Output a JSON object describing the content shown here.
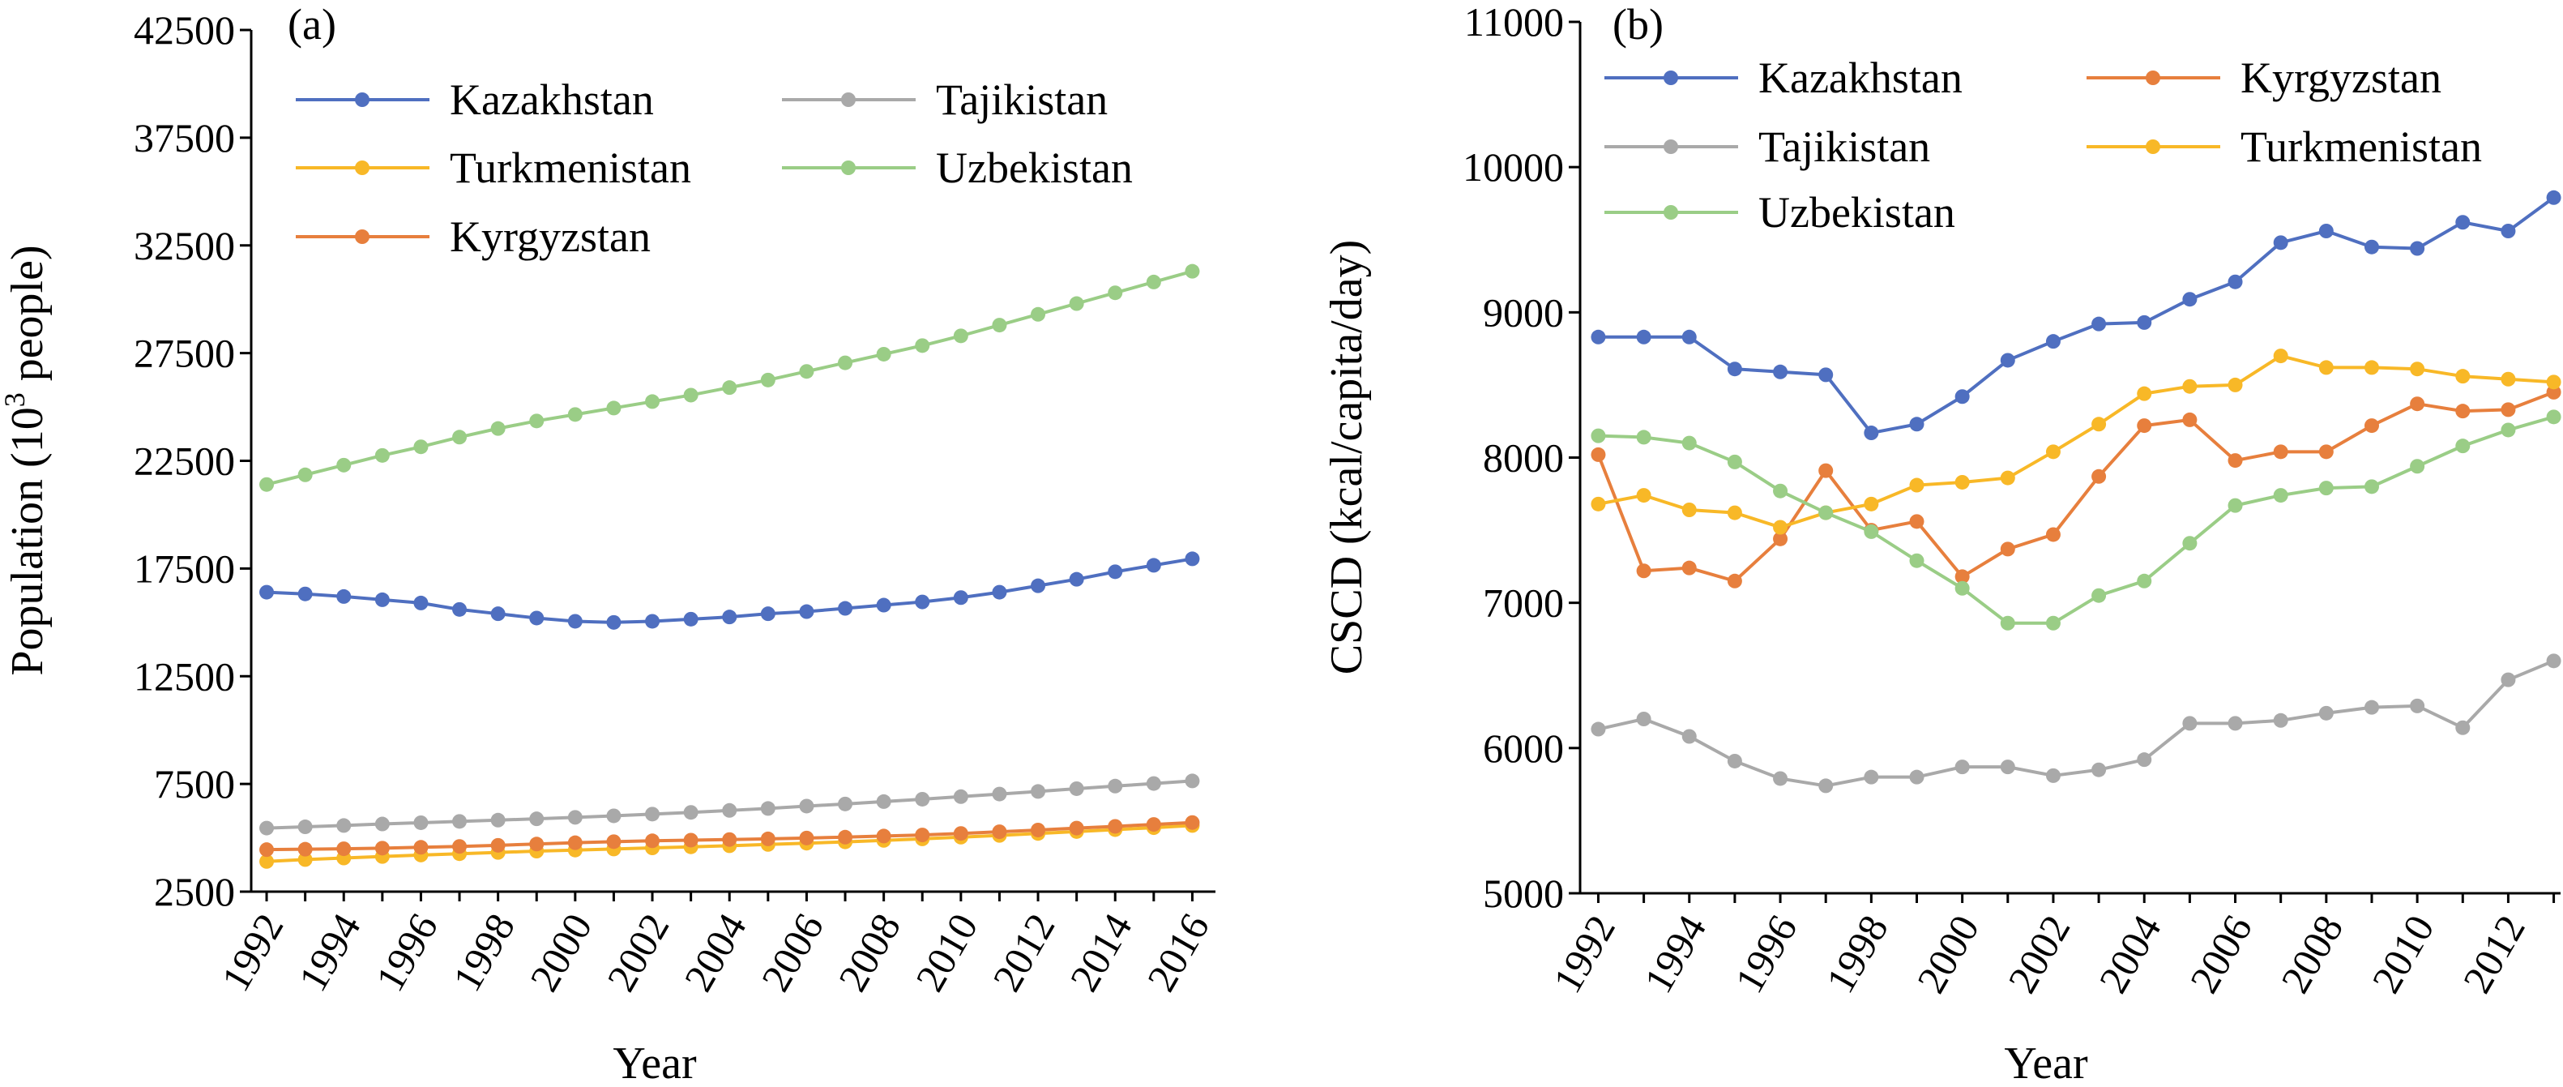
{
  "chart_data": [
    {
      "type": "line",
      "panel_label": "(a)",
      "xlabel": "Year",
      "ylabel": "Population (10",
      "ylabel_sup": "3",
      "ylabel_end": " people)",
      "x": [
        1992,
        1993,
        1994,
        1995,
        1996,
        1997,
        1998,
        1999,
        2000,
        2001,
        2002,
        2003,
        2004,
        2005,
        2006,
        2007,
        2008,
        2009,
        2010,
        2011,
        2012,
        2013,
        2014,
        2015,
        2016
      ],
      "x_tick_labels": [
        "1992",
        "1994",
        "1996",
        "1998",
        "2000",
        "2002",
        "2004",
        "2006",
        "2008",
        "2010",
        "2012",
        "2014",
        "2016"
      ],
      "xlim": [
        1991.6,
        2016.6
      ],
      "ylim": [
        2500,
        42500
      ],
      "y_tick_labels": [
        "2500",
        "7500",
        "12500",
        "17500",
        "22500",
        "27500",
        "32500",
        "37500",
        "42500"
      ],
      "legend_placement": "top-left",
      "series": [
        {
          "name": "Kazakhstan",
          "color": "#4f6fc0",
          "values": [
            16400,
            16320,
            16200,
            16050,
            15900,
            15600,
            15400,
            15200,
            15050,
            15000,
            15050,
            15150,
            15250,
            15400,
            15500,
            15650,
            15800,
            15950,
            16150,
            16400,
            16700,
            17000,
            17350,
            17650,
            17950
          ]
        },
        {
          "name": "Tajikistan",
          "color": "#a9a9a9",
          "values": [
            5450,
            5510,
            5570,
            5640,
            5700,
            5760,
            5820,
            5880,
            5950,
            6020,
            6100,
            6180,
            6270,
            6360,
            6470,
            6570,
            6680,
            6790,
            6910,
            7030,
            7150,
            7280,
            7400,
            7520,
            7640
          ]
        },
        {
          "name": "Turkmenistan",
          "color": "#f8b827",
          "values": [
            3900,
            3990,
            4060,
            4130,
            4200,
            4260,
            4320,
            4380,
            4430,
            4480,
            4530,
            4580,
            4630,
            4690,
            4750,
            4810,
            4880,
            4950,
            5030,
            5110,
            5200,
            5290,
            5380,
            5470,
            5570
          ]
        },
        {
          "name": "Uzbekistan",
          "color": "#9acd86",
          "values": [
            21400,
            21850,
            22300,
            22750,
            23150,
            23600,
            24000,
            24350,
            24650,
            24950,
            25250,
            25550,
            25900,
            26250,
            26650,
            27050,
            27450,
            27850,
            28300,
            28800,
            29300,
            29800,
            30300,
            30800,
            31300
          ]
        },
        {
          "name": "Kyrgyzstan",
          "color": "#e77f3d",
          "values": [
            4450,
            4470,
            4490,
            4520,
            4560,
            4600,
            4650,
            4710,
            4770,
            4820,
            4860,
            4890,
            4920,
            4950,
            4990,
            5030,
            5080,
            5130,
            5200,
            5280,
            5360,
            5450,
            5530,
            5620,
            5710
          ]
        }
      ]
    },
    {
      "type": "line",
      "panel_label": "(b)",
      "xlabel": "Year",
      "ylabel": "CSCD (kcal/capita/day)",
      "x": [
        1992,
        1993,
        1994,
        1995,
        1996,
        1997,
        1998,
        1999,
        2000,
        2001,
        2002,
        2003,
        2004,
        2005,
        2006,
        2007,
        2008,
        2009,
        2010,
        2011,
        2012,
        2013
      ],
      "x_tick_labels": [
        "1992",
        "1994",
        "1996",
        "1998",
        "2000",
        "2002",
        "2004",
        "2006",
        "2008",
        "2010",
        "2012"
      ],
      "xlim": [
        1991.6,
        2013.15
      ],
      "ylim": [
        5000,
        11000
      ],
      "y_tick_labels": [
        "5000",
        "6000",
        "7000",
        "8000",
        "9000",
        "10000",
        "11000"
      ],
      "legend_placement": "top",
      "series": [
        {
          "name": "Kazakhstan",
          "color": "#4f6fc0",
          "values": [
            8830,
            8830,
            8830,
            8610,
            8590,
            8570,
            8170,
            8230,
            8420,
            8670,
            8800,
            8920,
            8930,
            9090,
            9210,
            9480,
            9560,
            9450,
            9440,
            9620,
            9560,
            9790
          ]
        },
        {
          "name": "Kyrgyzstan",
          "color": "#e77f3d",
          "values": [
            8020,
            7220,
            7240,
            7150,
            7440,
            7910,
            7500,
            7560,
            7180,
            7370,
            7470,
            7870,
            8220,
            8260,
            7980,
            8040,
            8040,
            8220,
            8370,
            8320,
            8330,
            8450
          ]
        },
        {
          "name": "Tajikistan",
          "color": "#a9a9a9",
          "values": [
            6130,
            6200,
            6080,
            5910,
            5790,
            5740,
            5800,
            5800,
            5870,
            5870,
            5810,
            5850,
            5920,
            6170,
            6170,
            6190,
            6240,
            6280,
            6290,
            6140,
            6470,
            6600
          ]
        },
        {
          "name": "Turkmenistan",
          "color": "#f8b827",
          "values": [
            7680,
            7740,
            7640,
            7620,
            7520,
            7620,
            7680,
            7810,
            7830,
            7860,
            8040,
            8230,
            8440,
            8490,
            8500,
            8700,
            8620,
            8620,
            8610,
            8560,
            8540,
            8520
          ]
        },
        {
          "name": "Uzbekistan",
          "color": "#9acd86",
          "values": [
            8150,
            8140,
            8100,
            7970,
            7770,
            7620,
            7490,
            7290,
            7100,
            6860,
            6860,
            7050,
            7150,
            7410,
            7670,
            7740,
            7790,
            7800,
            7940,
            8080,
            8190,
            8280
          ]
        }
      ]
    }
  ]
}
